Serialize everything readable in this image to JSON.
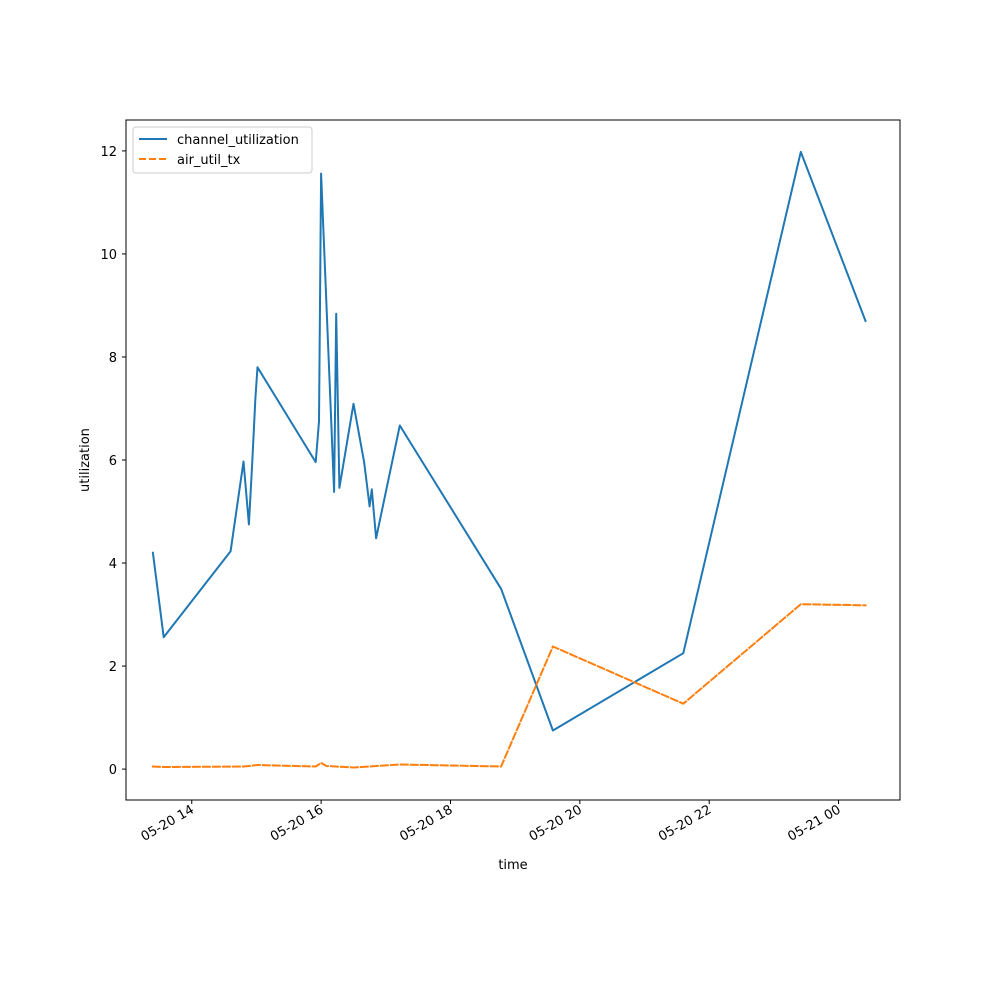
{
  "chart_data": {
    "type": "line",
    "title": "",
    "xlabel": "time",
    "ylabel": "utilization",
    "x_ticks": [
      "05-20 14",
      "05-20 16",
      "05-20 18",
      "05-20 20",
      "05-20 22",
      "05-21 00"
    ],
    "y_ticks": [
      "0",
      "2",
      "4",
      "6",
      "8",
      "10",
      "12"
    ],
    "xlim": [
      "2024-05-20 12:59",
      "2024-05-21 00:57"
    ],
    "ylim": [
      -0.6,
      12.6
    ],
    "grid": false,
    "legend_position": "upper-left",
    "series": [
      {
        "name": "channel_utilization",
        "color": "#1f77b4",
        "style": "solid",
        "points": [
          [
            "2024-05-20 13:24",
            4.2
          ],
          [
            "2024-05-20 13:34",
            2.56
          ],
          [
            "2024-05-20 14:36",
            4.23
          ],
          [
            "2024-05-20 14:48",
            5.97
          ],
          [
            "2024-05-20 14:53",
            4.75
          ],
          [
            "2024-05-20 14:56",
            5.9
          ],
          [
            "2024-05-20 14:59",
            7.2
          ],
          [
            "2024-05-20 15:01",
            7.8
          ],
          [
            "2024-05-20 15:55",
            5.96
          ],
          [
            "2024-05-20 15:58",
            6.75
          ],
          [
            "2024-05-20 16:00",
            11.56
          ],
          [
            "2024-05-20 16:12",
            5.38
          ],
          [
            "2024-05-20 16:14",
            8.84
          ],
          [
            "2024-05-20 16:17",
            5.46
          ],
          [
            "2024-05-20 16:30",
            7.09
          ],
          [
            "2024-05-20 16:40",
            5.95
          ],
          [
            "2024-05-20 16:45",
            5.1
          ],
          [
            "2024-05-20 16:47",
            5.43
          ],
          [
            "2024-05-20 16:51",
            4.48
          ],
          [
            "2024-05-20 17:13",
            6.67
          ],
          [
            "2024-05-20 18:47",
            3.5
          ],
          [
            "2024-05-20 19:35",
            0.75
          ],
          [
            "2024-05-20 21:36",
            2.25
          ],
          [
            "2024-05-20 23:25",
            11.98
          ],
          [
            "2024-05-21 00:25",
            8.7
          ]
        ]
      },
      {
        "name": "air_util_tx",
        "color": "#ff7f0e",
        "style": "dashed",
        "points": [
          [
            "2024-05-20 13:24",
            0.05
          ],
          [
            "2024-05-20 13:34",
            0.04
          ],
          [
            "2024-05-20 14:48",
            0.05
          ],
          [
            "2024-05-20 15:01",
            0.08
          ],
          [
            "2024-05-20 15:55",
            0.05
          ],
          [
            "2024-05-20 16:00",
            0.12
          ],
          [
            "2024-05-20 16:05",
            0.06
          ],
          [
            "2024-05-20 16:30",
            0.03
          ],
          [
            "2024-05-20 17:13",
            0.09
          ],
          [
            "2024-05-20 18:47",
            0.05
          ],
          [
            "2024-05-20 19:35",
            2.38
          ],
          [
            "2024-05-20 21:36",
            1.27
          ],
          [
            "2024-05-20 23:25",
            3.2
          ],
          [
            "2024-05-21 00:25",
            3.18
          ]
        ]
      }
    ]
  }
}
